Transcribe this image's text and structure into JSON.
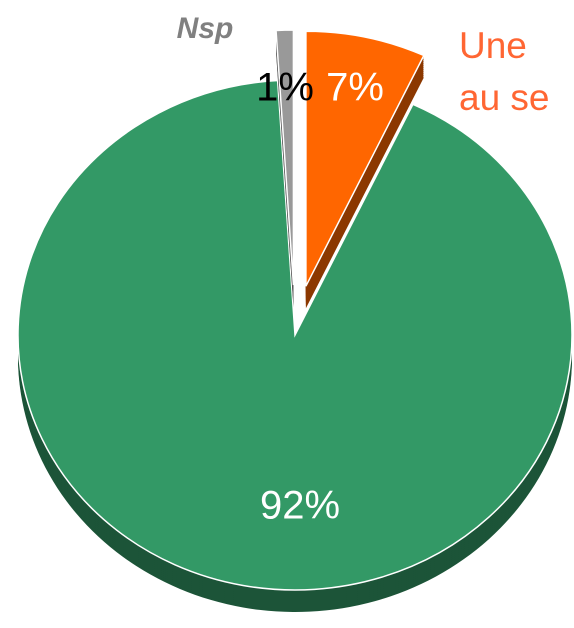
{
  "chart_data": {
    "type": "pie",
    "categories": [
      null,
      "Une au se",
      "Nsp"
    ],
    "values": [
      92,
      7,
      1
    ],
    "value_labels": [
      "92%",
      "7%",
      "1%"
    ],
    "colors": [
      "#339966",
      "#ff6600",
      "#999999"
    ],
    "start_angle": 0
  }
}
